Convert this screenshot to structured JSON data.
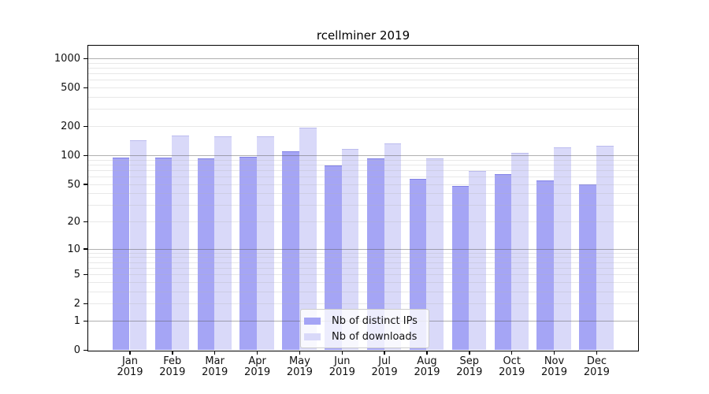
{
  "chart_data": {
    "type": "bar",
    "title": "rcellminer 2019",
    "categories": [
      "Jan 2019",
      "Feb 2019",
      "Mar 2019",
      "Apr 2019",
      "May 2019",
      "Jun 2019",
      "Jul 2019",
      "Aug 2019",
      "Sep 2019",
      "Oct 2019",
      "Nov 2019",
      "Dec 2019"
    ],
    "series": [
      {
        "name": "Nb of distinct IPs",
        "color": "#a5a5f5",
        "values": [
          95,
          94,
          92,
          96,
          109,
          78,
          92,
          57,
          48,
          64,
          54,
          50
        ]
      },
      {
        "name": "Nb of downloads",
        "color": "#d9d9f9",
        "values": [
          142,
          160,
          156,
          158,
          192,
          116,
          133,
          93,
          69,
          105,
          120,
          125
        ]
      }
    ],
    "xlabel": "",
    "ylabel": "",
    "yscale": "log10(value+1)",
    "ytick_labels": [
      1000,
      500,
      200,
      100,
      50,
      20,
      10,
      5,
      2,
      1,
      0
    ],
    "ylim": [
      0,
      1350
    ],
    "grid": true,
    "legend_position": "inside-bottom-center"
  },
  "colors": {
    "series_ips": "#a5a5f5",
    "series_downloads": "#d9d9f9",
    "major_grid": "#b0b0b0",
    "minor_grid": "#e8e8e8",
    "axis": "#000000",
    "legend_border": "#cccccc",
    "legend_bg": "rgba(255,255,255,0.8)"
  }
}
